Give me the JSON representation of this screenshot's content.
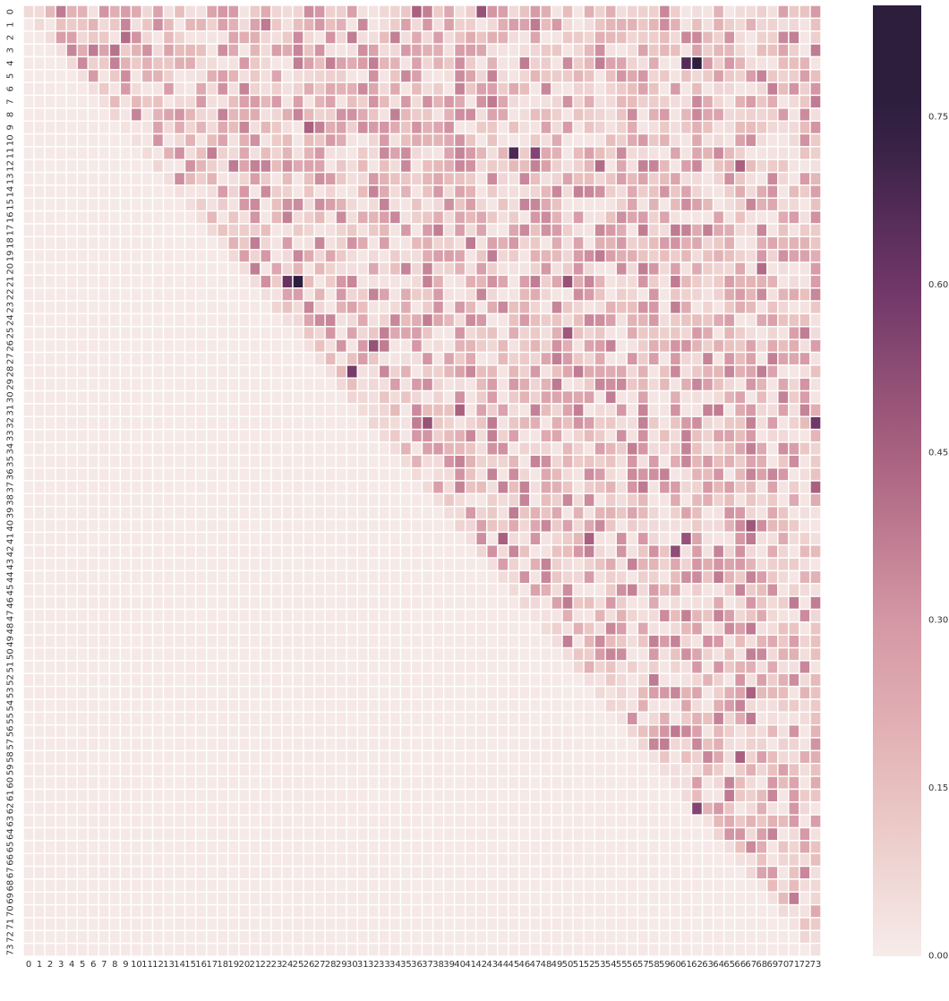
{
  "chart_data": {
    "type": "heatmap",
    "title": "",
    "xlabel": "",
    "ylabel": "",
    "n": 74,
    "row_labels_start": 0,
    "col_labels_start": 0,
    "layout": "upper-triangular (cells with column < row are ~0)",
    "value_range": [
      0.0,
      0.85
    ],
    "colorbar": {
      "ticks": [
        0.0,
        0.15,
        0.3,
        0.45,
        0.6,
        0.75
      ],
      "tick_labels": [
        "0.00",
        "0.15",
        "0.30",
        "0.45",
        "0.60",
        "0.75"
      ],
      "colors": [
        "#f6ecea",
        "#e8bfbd",
        "#d597a5",
        "#a9617f",
        "#6f3668",
        "#2d1e3e"
      ]
    },
    "notable_cells": [
      {
        "row": 4,
        "col": 62,
        "value": 0.85
      },
      {
        "row": 4,
        "col": 61,
        "value": 0.66
      },
      {
        "row": 21,
        "col": 25,
        "value": 0.85
      },
      {
        "row": 21,
        "col": 24,
        "value": 0.62
      },
      {
        "row": 11,
        "col": 45,
        "value": 0.68
      },
      {
        "row": 11,
        "col": 47,
        "value": 0.55
      },
      {
        "row": 21,
        "col": 50,
        "value": 0.5
      },
      {
        "row": 26,
        "col": 32,
        "value": 0.5
      },
      {
        "row": 25,
        "col": 50,
        "value": 0.48
      },
      {
        "row": 28,
        "col": 30,
        "value": 0.58
      },
      {
        "row": 32,
        "col": 37,
        "value": 0.5
      },
      {
        "row": 32,
        "col": 73,
        "value": 0.6
      },
      {
        "row": 37,
        "col": 73,
        "value": 0.45
      },
      {
        "row": 42,
        "col": 60,
        "value": 0.52
      },
      {
        "row": 62,
        "col": 62,
        "value": 0.55
      },
      {
        "row": 0,
        "col": 36,
        "value": 0.45
      },
      {
        "row": 0,
        "col": 42,
        "value": 0.5
      },
      {
        "row": 2,
        "col": 9,
        "value": 0.42
      },
      {
        "row": 3,
        "col": 8,
        "value": 0.4
      },
      {
        "row": 9,
        "col": 26,
        "value": 0.45
      },
      {
        "row": 12,
        "col": 53,
        "value": 0.42
      },
      {
        "row": 41,
        "col": 44,
        "value": 0.45
      },
      {
        "row": 41,
        "col": 52,
        "value": 0.45
      },
      {
        "row": 40,
        "col": 67,
        "value": 0.48
      },
      {
        "row": 41,
        "col": 61,
        "value": 0.5
      },
      {
        "row": 31,
        "col": 40,
        "value": 0.45
      },
      {
        "row": 53,
        "col": 67,
        "value": 0.45
      },
      {
        "row": 58,
        "col": 66,
        "value": 0.45
      },
      {
        "row": 20,
        "col": 68,
        "value": 0.42
      },
      {
        "row": 12,
        "col": 66,
        "value": 0.45
      }
    ]
  }
}
